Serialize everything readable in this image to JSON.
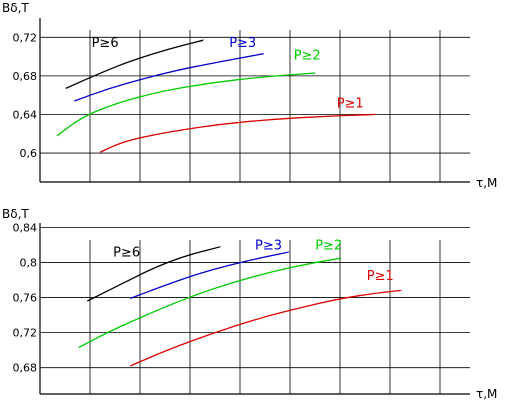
{
  "chart_data": [
    {
      "type": "line",
      "title": "",
      "ylabel": "Bδ,T",
      "xlabel": "τ,M",
      "ylim": [
        0.57,
        0.74
      ],
      "yticks": [
        0.6,
        0.64,
        0.68,
        0.72
      ],
      "ytick_labels": [
        "0,6",
        "0,64",
        "0,68",
        "0,72"
      ],
      "xlim": [
        0,
        1
      ],
      "grid": true,
      "series": [
        {
          "name": "P≥6",
          "color": "#000000",
          "label_at": [
            0.12,
            0.71
          ],
          "points": [
            [
              0.06,
              0.667
            ],
            [
              0.14,
              0.683
            ],
            [
              0.22,
              0.697
            ],
            [
              0.3,
              0.708
            ],
            [
              0.38,
              0.717
            ]
          ]
        },
        {
          "name": "P≥3",
          "color": "#0000cc",
          "label_at": [
            0.44,
            0.71
          ],
          "points": [
            [
              0.08,
              0.654
            ],
            [
              0.16,
              0.667
            ],
            [
              0.24,
              0.677
            ],
            [
              0.32,
              0.686
            ],
            [
              0.4,
              0.693
            ],
            [
              0.52,
              0.703
            ]
          ]
        },
        {
          "name": "P≥2",
          "color": "#00cc00",
          "label_at": [
            0.59,
            0.697
          ],
          "points": [
            [
              0.04,
              0.618
            ],
            [
              0.1,
              0.638
            ],
            [
              0.18,
              0.652
            ],
            [
              0.28,
              0.664
            ],
            [
              0.4,
              0.673
            ],
            [
              0.52,
              0.679
            ],
            [
              0.64,
              0.683
            ]
          ]
        },
        {
          "name": "P≥1",
          "color": "#dd0000",
          "label_at": [
            0.69,
            0.647
          ],
          "points": [
            [
              0.14,
              0.601
            ],
            [
              0.2,
              0.613
            ],
            [
              0.3,
              0.622
            ],
            [
              0.42,
              0.63
            ],
            [
              0.54,
              0.635
            ],
            [
              0.66,
              0.638
            ],
            [
              0.78,
              0.64
            ]
          ]
        }
      ]
    },
    {
      "type": "line",
      "title": "",
      "ylabel": "Bδ,T",
      "xlabel": "τ,M",
      "ylim": [
        0.65,
        0.845
      ],
      "yticks": [
        0.68,
        0.72,
        0.76,
        0.8,
        0.84
      ],
      "ytick_labels": [
        "0,68",
        "0,72",
        "0,76",
        "0,8",
        "0,84"
      ],
      "xlim": [
        0,
        1
      ],
      "grid": true,
      "series": [
        {
          "name": "P≥6",
          "color": "#000000",
          "label_at": [
            0.17,
            0.807
          ],
          "points": [
            [
              0.11,
              0.756
            ],
            [
              0.18,
              0.773
            ],
            [
              0.26,
              0.793
            ],
            [
              0.34,
              0.808
            ],
            [
              0.42,
              0.818
            ]
          ]
        },
        {
          "name": "P≥3",
          "color": "#0000cc",
          "label_at": [
            0.5,
            0.815
          ],
          "points": [
            [
              0.21,
              0.759
            ],
            [
              0.28,
              0.772
            ],
            [
              0.36,
              0.786
            ],
            [
              0.44,
              0.797
            ],
            [
              0.52,
              0.806
            ],
            [
              0.58,
              0.812
            ]
          ]
        },
        {
          "name": "P≥2",
          "color": "#00cc00",
          "label_at": [
            0.64,
            0.815
          ],
          "points": [
            [
              0.09,
              0.703
            ],
            [
              0.16,
              0.721
            ],
            [
              0.26,
              0.743
            ],
            [
              0.36,
              0.763
            ],
            [
              0.46,
              0.779
            ],
            [
              0.56,
              0.792
            ],
            [
              0.64,
              0.8
            ],
            [
              0.7,
              0.805
            ]
          ]
        },
        {
          "name": "P≥1",
          "color": "#dd0000",
          "label_at": [
            0.76,
            0.78
          ],
          "points": [
            [
              0.21,
              0.682
            ],
            [
              0.3,
              0.701
            ],
            [
              0.4,
              0.719
            ],
            [
              0.5,
              0.735
            ],
            [
              0.6,
              0.748
            ],
            [
              0.7,
              0.759
            ],
            [
              0.78,
              0.765
            ],
            [
              0.84,
              0.768
            ]
          ]
        }
      ]
    }
  ]
}
